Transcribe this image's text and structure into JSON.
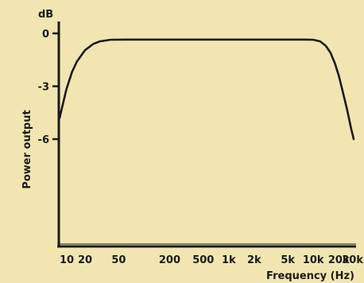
{
  "chart_data": {
    "type": "line",
    "title": "",
    "xlabel": "Frequency (Hz)",
    "ylabel": "Power output",
    "yunit": "dB",
    "xscale": "log",
    "xlim": [
      10,
      30000
    ],
    "ylim": [
      -9,
      0.5
    ],
    "grid": false,
    "legend": "none",
    "colors": {
      "background": "#f1e6b1",
      "ink": "#1b1a17"
    },
    "x_ticks": [
      {
        "value": 10,
        "label": "10"
      },
      {
        "value": 20,
        "label": "20"
      },
      {
        "value": 50,
        "label": "50"
      },
      {
        "value": 200,
        "label": "200"
      },
      {
        "value": 500,
        "label": "500"
      },
      {
        "value": 1000,
        "label": "1k"
      },
      {
        "value": 2000,
        "label": "2k"
      },
      {
        "value": 5000,
        "label": "5k"
      },
      {
        "value": 10000,
        "label": "10k"
      },
      {
        "value": 20000,
        "label": "20k"
      },
      {
        "value": 30000,
        "label": "30k"
      }
    ],
    "y_ticks": [
      {
        "value": 0,
        "label": "0"
      },
      {
        "value": -3,
        "label": "-3"
      },
      {
        "value": -6,
        "label": "-6"
      }
    ],
    "series": [
      {
        "x": [
          10,
          12,
          14,
          16,
          20,
          25,
          30,
          40,
          60,
          100,
          300,
          1000,
          3000,
          8000,
          10000,
          12000,
          14000,
          16000,
          18000,
          20000,
          22000,
          25000,
          28000,
          30000
        ],
        "y": [
          -4.8,
          -3.2,
          -2.2,
          -1.6,
          -0.95,
          -0.6,
          -0.45,
          -0.36,
          -0.35,
          -0.35,
          -0.35,
          -0.35,
          -0.35,
          -0.35,
          -0.36,
          -0.45,
          -0.7,
          -1.1,
          -1.7,
          -2.4,
          -3.2,
          -4.3,
          -5.4,
          -6.0
        ]
      }
    ]
  }
}
